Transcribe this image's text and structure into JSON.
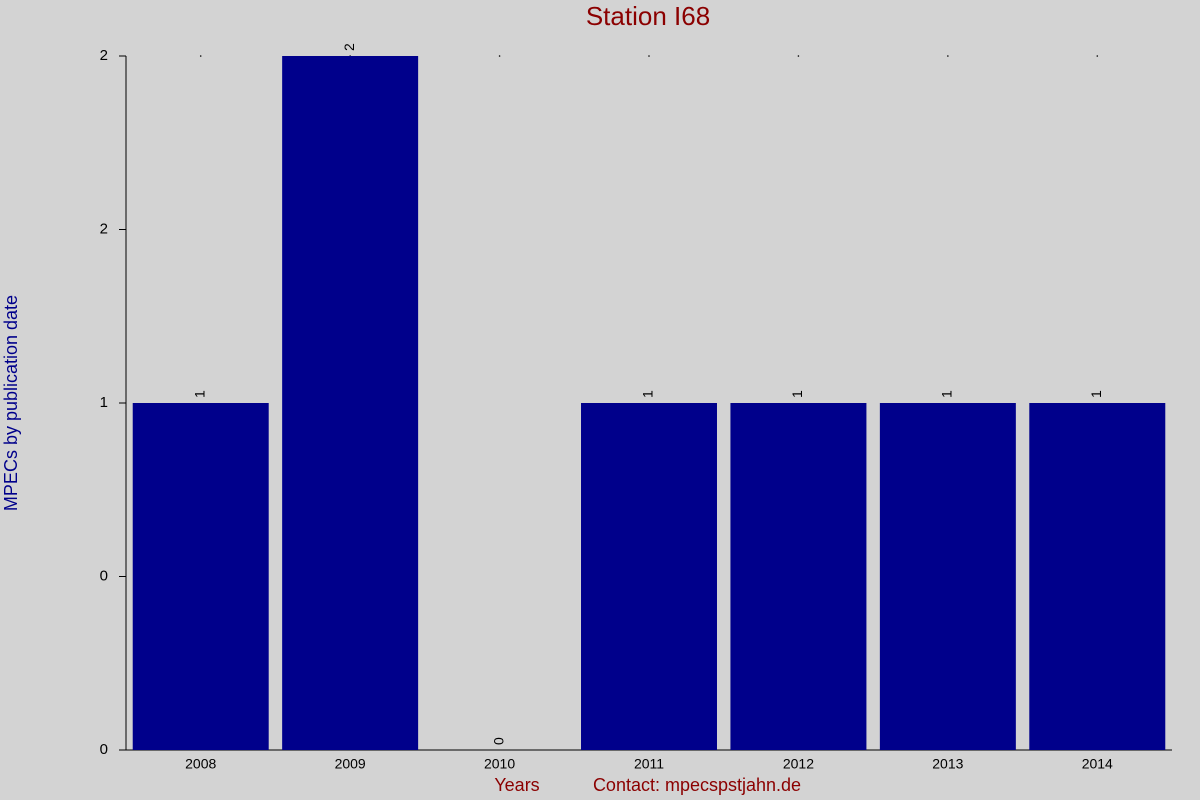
{
  "chart_data": {
    "type": "bar",
    "title": "Station I68",
    "x_label": "Years",
    "footer": "Contact: mpecspstjahn.de",
    "y_label": "MPECs by publication date",
    "categories": [
      "2008",
      "2009",
      "2010",
      "2011",
      "2012",
      "2013",
      "2014"
    ],
    "values": [
      1,
      2,
      0,
      1,
      1,
      1,
      1
    ],
    "color": "#00008b",
    "ylim": [
      0,
      2
    ],
    "yticks": [
      0,
      {
        "value": 0.5,
        "label": "0"
      },
      1,
      {
        "value": 1.5,
        "label": "2"
      },
      2
    ]
  }
}
